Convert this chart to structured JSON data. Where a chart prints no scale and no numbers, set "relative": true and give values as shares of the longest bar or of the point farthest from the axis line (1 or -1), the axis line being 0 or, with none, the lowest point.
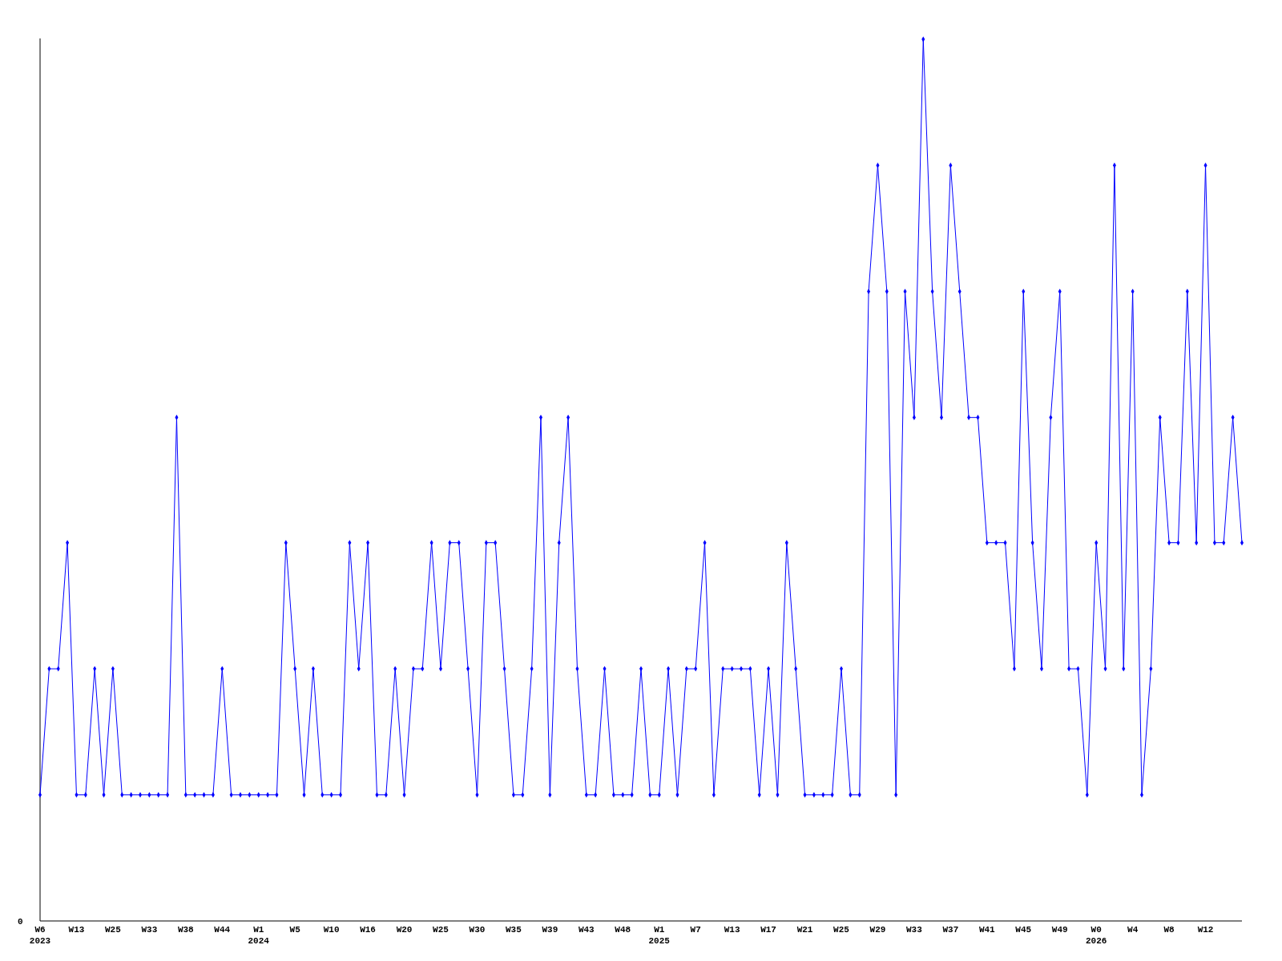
{
  "chart_data": {
    "type": "line",
    "relative": true,
    "marker": "diamond",
    "line_style": "solid",
    "categories": [
      "W6 2023",
      null,
      null,
      null,
      "W13",
      null,
      null,
      null,
      "W25",
      null,
      null,
      null,
      "W33",
      null,
      null,
      null,
      "W38",
      null,
      null,
      null,
      "W44",
      null,
      null,
      null,
      "W1 2024",
      null,
      null,
      null,
      "W5",
      null,
      null,
      null,
      "W10",
      null,
      null,
      null,
      "W16",
      null,
      null,
      null,
      "W20",
      null,
      null,
      null,
      "W25",
      null,
      null,
      null,
      "W30",
      null,
      null,
      null,
      "W35",
      null,
      null,
      null,
      "W39",
      null,
      null,
      null,
      "W43",
      null,
      null,
      null,
      "W48",
      null,
      null,
      null,
      "W1 2025",
      null,
      null,
      null,
      "W7",
      null,
      null,
      null,
      "W13",
      null,
      null,
      null,
      "W17",
      null,
      null,
      null,
      "W21",
      null,
      null,
      null,
      "W25",
      null,
      null,
      null,
      "W29",
      null,
      null,
      null,
      "W33",
      null,
      null,
      null,
      "W37",
      null,
      null,
      null,
      "W41",
      null,
      null,
      null,
      "W45",
      null,
      null,
      null,
      "W49",
      null,
      null,
      null,
      "W0 2026",
      null,
      null,
      null,
      "W4",
      null,
      null,
      null,
      "W8",
      null,
      null,
      null,
      "W12",
      null,
      null,
      null,
      null
    ],
    "series": [
      {
        "color": "#0000ff",
        "values": [
          0.143,
          0.286,
          0.286,
          0.429,
          0.143,
          0.143,
          0.286,
          0.143,
          0.286,
          0.143,
          0.143,
          0.143,
          0.143,
          0.143,
          0.143,
          0.571,
          0.143,
          0.143,
          0.143,
          0.143,
          0.286,
          0.143,
          0.143,
          0.143,
          0.143,
          0.143,
          0.143,
          0.429,
          0.286,
          0.143,
          0.286,
          0.143,
          0.143,
          0.143,
          0.429,
          0.286,
          0.429,
          0.143,
          0.143,
          0.286,
          0.143,
          0.286,
          0.286,
          0.429,
          0.286,
          0.429,
          0.429,
          0.286,
          0.143,
          0.429,
          0.429,
          0.286,
          0.143,
          0.143,
          0.286,
          0.571,
          0.143,
          0.429,
          0.571,
          0.286,
          0.143,
          0.143,
          0.286,
          0.143,
          0.143,
          0.143,
          0.286,
          0.143,
          0.143,
          0.286,
          0.143,
          0.286,
          0.286,
          0.429,
          0.143,
          0.286,
          0.286,
          0.286,
          0.286,
          0.143,
          0.286,
          0.143,
          0.429,
          0.286,
          0.143,
          0.143,
          0.143,
          0.143,
          0.286,
          0.143,
          0.143,
          0.714,
          0.857,
          0.714,
          0.143,
          0.714,
          0.571,
          1,
          0.714,
          0.571,
          0.857,
          0.714,
          0.571,
          0.571,
          0.429,
          0.429,
          0.429,
          0.286,
          0.714,
          0.429,
          0.286,
          0.571,
          0.714,
          0.286,
          0.286,
          0.143,
          0.429,
          0.286,
          0.857,
          0.286,
          0.714,
          0.143,
          0.286,
          0.571,
          0.429,
          0.429,
          0.714,
          0.429,
          0.857,
          0.429,
          0.429,
          0.571,
          0.429
        ]
      }
    ],
    "annotations": [
      "0"
    ]
  }
}
